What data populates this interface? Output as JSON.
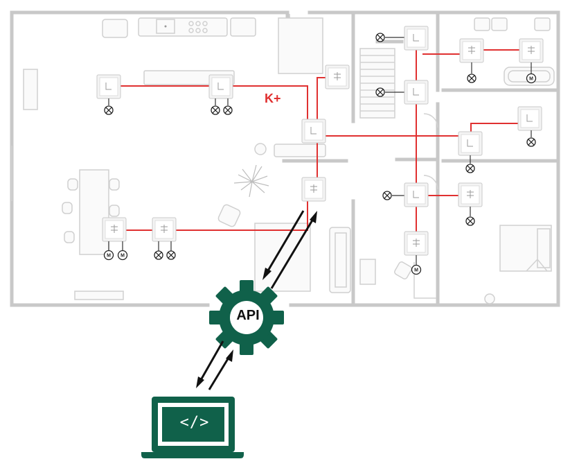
{
  "diagram": {
    "bus_label": "K+",
    "api_label": "API",
    "code_label": "</>",
    "colors": {
      "bus": "#e03030",
      "accent": "#10614a",
      "walls": "#c8c8c8"
    },
    "icons": [
      "light-bulb-icon",
      "motor-icon",
      "gear-icon",
      "laptop-icon",
      "knx-device-icon"
    ]
  }
}
